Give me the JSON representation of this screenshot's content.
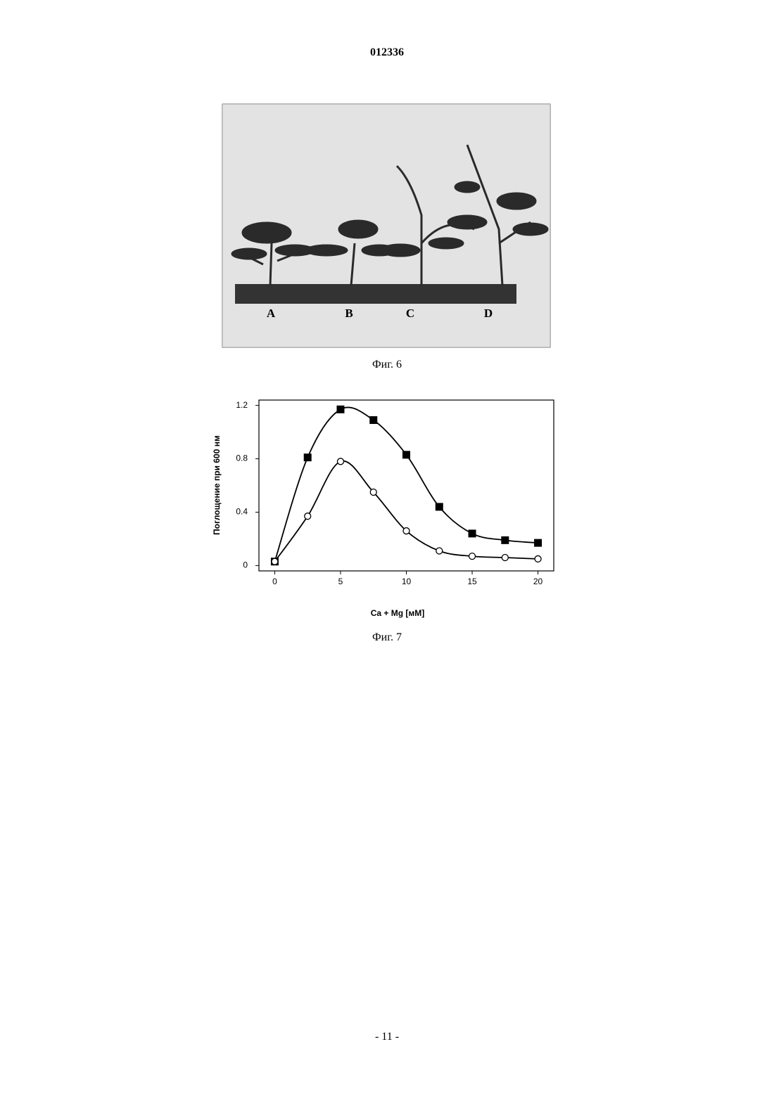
{
  "header": {
    "number": "012336"
  },
  "figure6": {
    "labels": [
      "A",
      "B",
      "C",
      "D"
    ],
    "caption": "Фиг. 6"
  },
  "chart_data": {
    "type": "line",
    "x": [
      0,
      2.5,
      5,
      7.5,
      10,
      12.5,
      15,
      17.5,
      20
    ],
    "series": [
      {
        "color": "#000000",
        "marker": "square",
        "values": [
          0.03,
          0.81,
          1.17,
          1.09,
          0.83,
          0.44,
          0.24,
          0.19,
          0.17
        ]
      },
      {
        "color": "#000000",
        "marker": "circle",
        "values": [
          0.03,
          0.37,
          0.78,
          0.55,
          0.26,
          0.11,
          0.07,
          0.06,
          0.05
        ]
      }
    ],
    "xlim": [
      -1.2,
      21.2
    ],
    "ylim": [
      -0.04,
      1.24
    ],
    "xticks": [
      0,
      5,
      10,
      15,
      20
    ],
    "yticks": [
      0,
      0.4,
      0.8,
      1.2
    ],
    "xlabel": "Ca + Mg [мМ]",
    "ylabel": "Поглощение при 600 нм",
    "grid": false
  },
  "figure7": {
    "caption": "Фиг. 7"
  },
  "footer": {
    "page": "- 11 -"
  }
}
